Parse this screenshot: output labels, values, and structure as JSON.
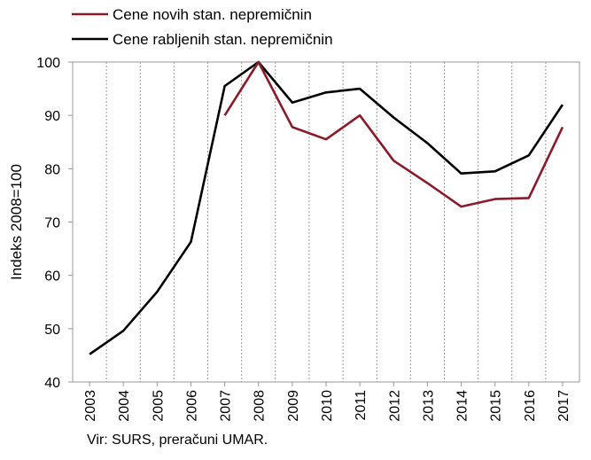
{
  "chart_data": {
    "type": "line",
    "categories": [
      "2003",
      "2004",
      "2005",
      "2006",
      "2007",
      "2008",
      "2009",
      "2010",
      "2011",
      "2012",
      "2013",
      "2014",
      "2015",
      "2016",
      "2017"
    ],
    "series": [
      {
        "name": "Cene novih stan. nepremičnin",
        "color": "#8b1a2b",
        "values": [
          null,
          null,
          null,
          null,
          90.0,
          100.0,
          87.8,
          85.5,
          90.0,
          81.5,
          77.3,
          72.9,
          74.3,
          74.5,
          87.8
        ]
      },
      {
        "name": "Cene rabljenih stan. nepremičnin",
        "color": "#000000",
        "values": [
          45.2,
          49.6,
          56.9,
          66.3,
          95.5,
          100.0,
          92.4,
          94.3,
          95.0,
          89.6,
          84.8,
          79.1,
          79.5,
          82.5,
          92.0
        ]
      }
    ],
    "ylabel": "Indeks 2008=100",
    "xlabel": "",
    "ylim": [
      40,
      100
    ],
    "yticks": [
      40,
      50,
      60,
      70,
      80,
      90,
      100
    ],
    "grid": "vertical-dashed",
    "legend": "top-left",
    "source": "Vir: SURS, preračuni UMAR."
  }
}
